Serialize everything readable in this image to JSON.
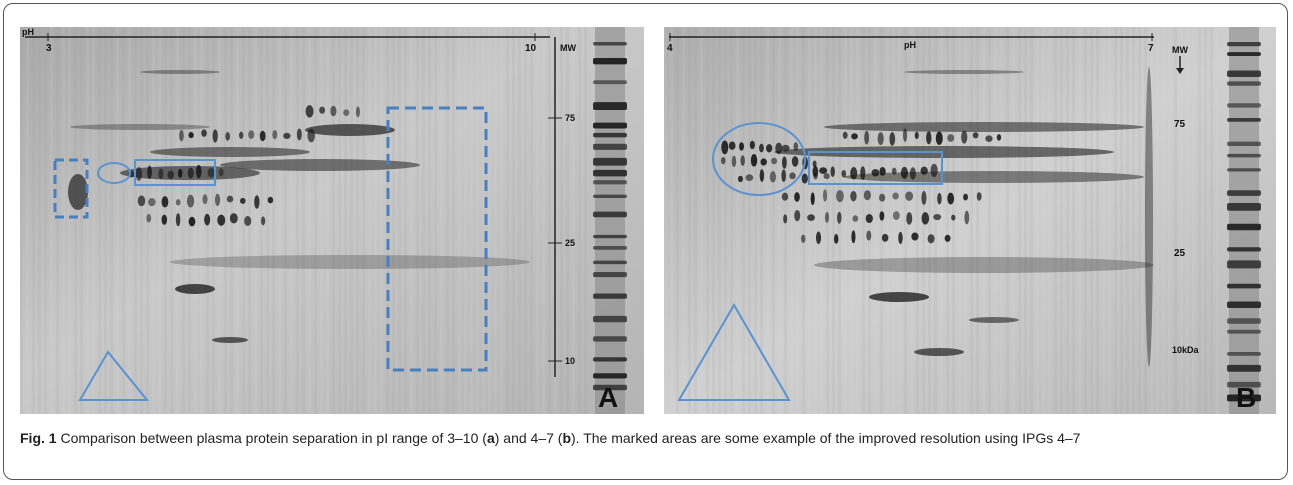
{
  "figure": {
    "panels": [
      {
        "label": "A",
        "ph_label": "pH",
        "ph_ticks": [
          "3",
          "10"
        ],
        "mw_label": "MW",
        "mw_ticks": [
          "75",
          "25",
          "10"
        ]
      },
      {
        "label": "B",
        "ph_label": "pH",
        "ph_ticks": [
          "4",
          "7"
        ],
        "mw_label": "MW",
        "mw_ticks": [
          "75",
          "25",
          "10kDa"
        ]
      }
    ],
    "caption": {
      "label": "Fig. 1",
      "text_1": " Comparison between plasma protein separation in pI range of 3–10 (",
      "bold_a": "a",
      "text_2": ") and 4–7 (",
      "bold_b": "b",
      "text_3": "). The marked areas are some example of the improved resolution using IPGs 4–7"
    }
  }
}
